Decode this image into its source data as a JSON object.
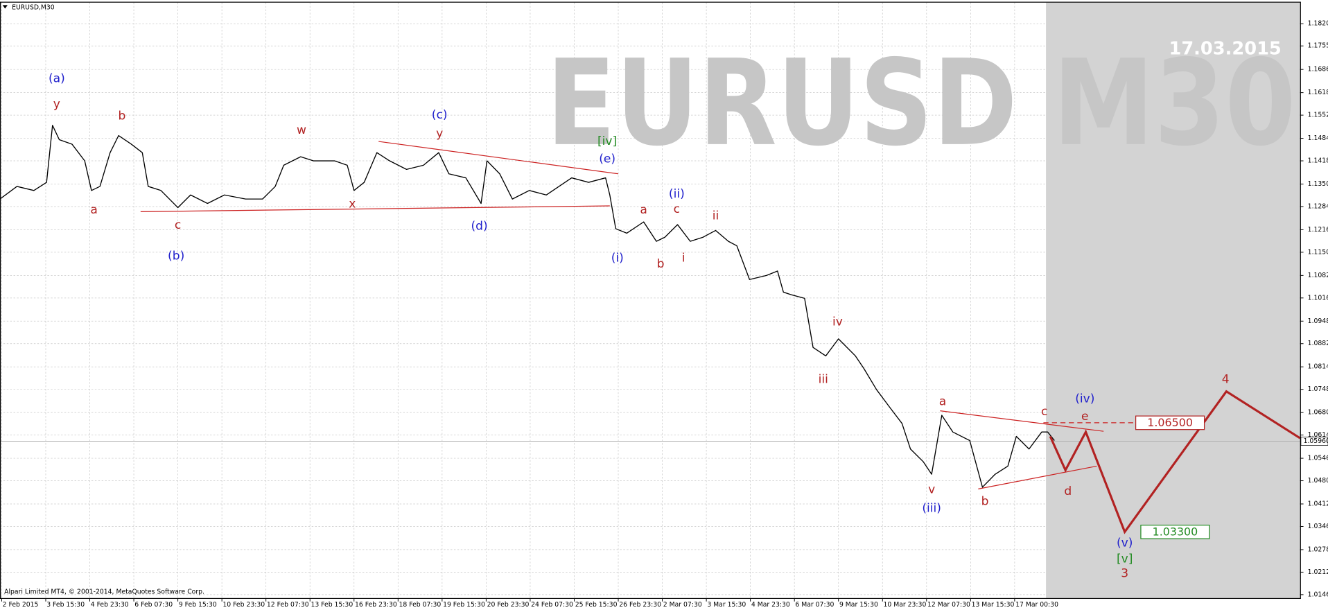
{
  "chart_data": {
    "type": "line",
    "title": "EURUSD,M30",
    "watermark": "EURUSD M30",
    "watermark_date": "17.03.2015",
    "copyright": "Alpari Limited MT4, © 2001-2014, MetaQuotes Software Corp.",
    "color": "#000000",
    "x": [
      0,
      20,
      40,
      55,
      62,
      70,
      85,
      100,
      108,
      118,
      130,
      140,
      155,
      168,
      175,
      190,
      210,
      225,
      245,
      265,
      290,
      310,
      325,
      335,
      355,
      370,
      395,
      410,
      418,
      430,
      445,
      460,
      480,
      500,
      518,
      530,
      550,
      568,
      575,
      590,
      605,
      625,
      645,
      660,
      675,
      695,
      715,
      720,
      727,
      740,
      760,
      775,
      785,
      800,
      815,
      830,
      845,
      860,
      870,
      885,
      905,
      918,
      925,
      935,
      950,
      960,
      975,
      990,
      1010,
      1020,
      1035,
      1050,
      1065,
      1075,
      1090,
      1100,
      1112,
      1125,
      1145,
      1160,
      1175,
      1190,
      1200,
      1215,
      1230,
      1237,
      1245
    ],
    "values": [
      1.1306,
      1.1343,
      1.1331,
      1.1355,
      1.1522,
      1.148,
      1.1467,
      1.1418,
      1.1331,
      1.1343,
      1.1442,
      1.1492,
      1.1467,
      1.1442,
      1.1343,
      1.1331,
      1.1281,
      1.1318,
      1.1293,
      1.1318,
      1.1306,
      1.1306,
      1.1343,
      1.1405,
      1.143,
      1.1418,
      1.1418,
      1.1405,
      1.1331,
      1.1355,
      1.1442,
      1.1418,
      1.1393,
      1.1405,
      1.1442,
      1.138,
      1.1368,
      1.1293,
      1.1418,
      1.138,
      1.1306,
      1.1331,
      1.1318,
      1.1343,
      1.1368,
      1.1355,
      1.1368,
      1.1318,
      1.1219,
      1.1206,
      1.1239,
      1.1182,
      1.1194,
      1.1231,
      1.1182,
      1.1194,
      1.1214,
      1.1182,
      1.1169,
      1.107,
      1.1082,
      1.1095,
      1.1033,
      1.1025,
      1.1015,
      1.0871,
      1.0846,
      1.0896,
      1.0846,
      1.0809,
      1.0747,
      1.0697,
      1.0648,
      1.0573,
      1.0536,
      1.0499,
      1.0672,
      1.0623,
      1.0598,
      1.0461,
      1.0499,
      1.0523,
      1.061,
      1.0573,
      1.0623,
      1.0623,
      1.0598
    ],
    "xlim": [
      0,
      1535
    ],
    "xticks": [
      {
        "value": 2,
        "label": "2 Feb 2015"
      },
      {
        "value": 54,
        "label": "3 Feb 15:30"
      },
      {
        "value": 106,
        "label": "4 Feb 23:30"
      },
      {
        "value": 158,
        "label": "6 Feb 07:30"
      },
      {
        "value": 210,
        "label": "9 Feb 15:30"
      },
      {
        "value": 262,
        "label": "10 Feb 23:30"
      },
      {
        "value": 314,
        "label": "12 Feb 07:30"
      },
      {
        "value": 366,
        "label": "13 Feb 15:30"
      },
      {
        "value": 418,
        "label": "16 Feb 23:30"
      },
      {
        "value": 470,
        "label": "18 Feb 07:30"
      },
      {
        "value": 522,
        "label": "19 Feb 15:30"
      },
      {
        "value": 574,
        "label": "20 Feb 23:30"
      },
      {
        "value": 626,
        "label": "24 Feb 07:30"
      },
      {
        "value": 678,
        "label": "25 Feb 15:30"
      },
      {
        "value": 730,
        "label": "26 Feb 23:30"
      },
      {
        "value": 782,
        "label": "2 Mar 07:30"
      },
      {
        "value": 834,
        "label": "3 Mar 15:30"
      },
      {
        "value": 886,
        "label": "4 Mar 23:30"
      },
      {
        "value": 938,
        "label": "6 Mar 07:30"
      },
      {
        "value": 990,
        "label": "9 Mar 15:30"
      },
      {
        "value": 1042,
        "label": "10 Mar 23:30"
      },
      {
        "value": 1094,
        "label": "12 Mar 07:30"
      },
      {
        "value": 1146,
        "label": "13 Mar 15:30"
      },
      {
        "value": 1198,
        "label": "17 Mar 00:30"
      }
    ],
    "ylim": [
      1.0136,
      1.1877
    ],
    "yticks": [
      {
        "value": 1.182,
        "label": "1.18200"
      },
      {
        "value": 1.1755,
        "label": "1.17550"
      },
      {
        "value": 1.1686,
        "label": "1.16860"
      },
      {
        "value": 1.1618,
        "label": "1.16180"
      },
      {
        "value": 1.1552,
        "label": "1.15520"
      },
      {
        "value": 1.1484,
        "label": "1.14840"
      },
      {
        "value": 1.1418,
        "label": "1.14180"
      },
      {
        "value": 1.135,
        "label": "1.13500"
      },
      {
        "value": 1.1284,
        "label": "1.12840"
      },
      {
        "value": 1.1216,
        "label": "1.12160"
      },
      {
        "value": 1.115,
        "label": "1.11500"
      },
      {
        "value": 1.1082,
        "label": "1.10820"
      },
      {
        "value": 1.1016,
        "label": "1.10160"
      },
      {
        "value": 1.0948,
        "label": "1.09480"
      },
      {
        "value": 1.0882,
        "label": "1.08820"
      },
      {
        "value": 1.0814,
        "label": "1.08140"
      },
      {
        "value": 1.0748,
        "label": "1.07480"
      },
      {
        "value": 1.068,
        "label": "1.06800"
      },
      {
        "value": 1.0614,
        "label": "1.06140"
      },
      {
        "value": 1.0546,
        "label": "1.05460"
      },
      {
        "value": 1.048,
        "label": "1.04800"
      },
      {
        "value": 1.0412,
        "label": "1.04120"
      },
      {
        "value": 1.0346,
        "label": "1.03460"
      },
      {
        "value": 1.0278,
        "label": "1.02780"
      },
      {
        "value": 1.0212,
        "label": "1.02120"
      },
      {
        "value": 1.0146,
        "label": "1.01460"
      }
    ],
    "grid": true,
    "current_price": {
      "value": 1.0596,
      "label": "1.05960"
    },
    "shade_xlim": [
      1235,
      1535
    ],
    "projection": {
      "color": "#b22222",
      "x": [
        1240,
        1258,
        1282,
        1328,
        1448,
        1535
      ],
      "values": [
        1.061,
        1.0511,
        1.0623,
        1.033,
        1.0742,
        1.0605
      ]
    },
    "trendlines": [
      {
        "color": "#cc2222",
        "dashed": false,
        "x": [
          166,
          720
        ],
        "values": [
          1.1269,
          1.1286
        ]
      },
      {
        "color": "#cc2222",
        "dashed": false,
        "x": [
          447,
          730
        ],
        "values": [
          1.1475,
          1.138
        ]
      },
      {
        "color": "#cc2222",
        "dashed": false,
        "x": [
          1110,
          1303
        ],
        "values": [
          1.0685,
          1.0625
        ]
      },
      {
        "color": "#cc2222",
        "dashed": false,
        "x": [
          1155,
          1295
        ],
        "values": [
          1.0456,
          1.0523
        ]
      },
      {
        "color": "#cc2222",
        "dashed": true,
        "x": [
          1232,
          1340
        ],
        "values": [
          1.065,
          1.065
        ]
      }
    ],
    "price_labels": [
      {
        "value": 1.065,
        "label": "1.06500",
        "x": 1341,
        "color": "#b22222"
      },
      {
        "value": 1.033,
        "label": "1.03300",
        "x": 1347,
        "color": "#228b22"
      }
    ],
    "annotations": [
      {
        "text": "(a)",
        "x": 67,
        "y": 1.1659,
        "color": "#1f1fcc"
      },
      {
        "text": "y",
        "x": 67,
        "y": 1.1584,
        "color": "#b22222"
      },
      {
        "text": "b",
        "x": 144,
        "y": 1.1549,
        "color": "#b22222"
      },
      {
        "text": "a",
        "x": 111,
        "y": 1.1274,
        "color": "#b22222"
      },
      {
        "text": "c",
        "x": 210,
        "y": 1.1229,
        "color": "#b22222"
      },
      {
        "text": "(b)",
        "x": 208,
        "y": 1.1139,
        "color": "#1f1fcc"
      },
      {
        "text": "w",
        "x": 356,
        "y": 1.1507,
        "color": "#b22222"
      },
      {
        "text": "x",
        "x": 416,
        "y": 1.1291,
        "color": "#b22222"
      },
      {
        "text": "(c)",
        "x": 519,
        "y": 1.1552,
        "color": "#1f1fcc"
      },
      {
        "text": "y",
        "x": 519,
        "y": 1.1497,
        "color": "#b22222"
      },
      {
        "text": "(d)",
        "x": 566,
        "y": 1.1226,
        "color": "#1f1fcc"
      },
      {
        "text": "[iv]",
        "x": 717,
        "y": 1.1475,
        "color": "#228b22"
      },
      {
        "text": "(e)",
        "x": 717,
        "y": 1.1423,
        "color": "#1f1fcc"
      },
      {
        "text": "(i)",
        "x": 729,
        "y": 1.1132,
        "color": "#1f1fcc"
      },
      {
        "text": "a",
        "x": 760,
        "y": 1.1274,
        "color": "#b22222"
      },
      {
        "text": "(ii)",
        "x": 799,
        "y": 1.1321,
        "color": "#1f1fcc"
      },
      {
        "text": "c",
        "x": 799,
        "y": 1.1276,
        "color": "#b22222"
      },
      {
        "text": "ii",
        "x": 845,
        "y": 1.1256,
        "color": "#b22222"
      },
      {
        "text": "b",
        "x": 780,
        "y": 1.1115,
        "color": "#b22222"
      },
      {
        "text": "i",
        "x": 807,
        "y": 1.1132,
        "color": "#b22222"
      },
      {
        "text": "iv",
        "x": 989,
        "y": 1.0946,
        "color": "#b22222"
      },
      {
        "text": "iii",
        "x": 972,
        "y": 1.0777,
        "color": "#b22222"
      },
      {
        "text": "a",
        "x": 1113,
        "y": 1.0712,
        "color": "#b22222"
      },
      {
        "text": "v",
        "x": 1100,
        "y": 1.0454,
        "color": "#b22222"
      },
      {
        "text": "(iii)",
        "x": 1100,
        "y": 1.0399,
        "color": "#1f1fcc"
      },
      {
        "text": "b",
        "x": 1163,
        "y": 1.0419,
        "color": "#b22222"
      },
      {
        "text": "c",
        "x": 1233,
        "y": 1.0682,
        "color": "#b22222"
      },
      {
        "text": "(iv)",
        "x": 1281,
        "y": 1.072,
        "color": "#1f1fcc"
      },
      {
        "text": "e",
        "x": 1281,
        "y": 1.0668,
        "color": "#b22222"
      },
      {
        "text": "d",
        "x": 1261,
        "y": 1.0449,
        "color": "#b22222"
      },
      {
        "text": "(v)",
        "x": 1328,
        "y": 1.0297,
        "color": "#1f1fcc"
      },
      {
        "text": "[v]",
        "x": 1328,
        "y": 1.025,
        "color": "#228b22"
      },
      {
        "text": "3",
        "x": 1328,
        "y": 1.0208,
        "color": "#b22222"
      },
      {
        "text": "4",
        "x": 1447,
        "y": 1.0777,
        "color": "#b22222"
      }
    ]
  }
}
